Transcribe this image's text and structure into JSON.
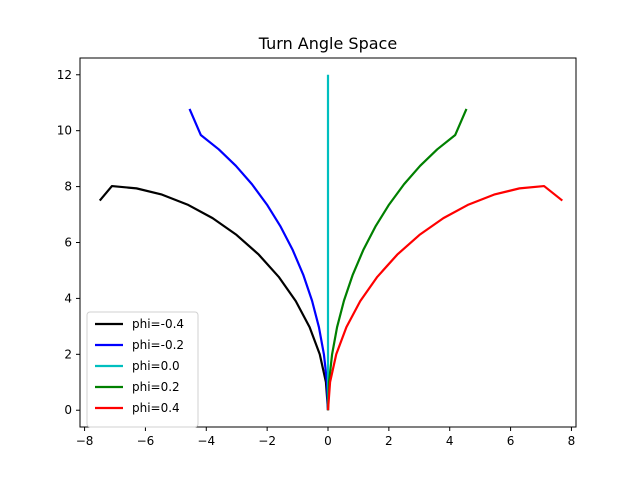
{
  "chart_data": {
    "type": "line",
    "title": "Turn Angle Space",
    "xlabel": "",
    "ylabel": "",
    "xlim": [
      -8.15,
      8.15
    ],
    "ylim": [
      -0.6,
      12.6
    ],
    "x_ticks": [
      -8,
      -6,
      -4,
      -2,
      0,
      2,
      4,
      6,
      8
    ],
    "x_tick_labels": [
      "−8",
      "−6",
      "−4",
      "−2",
      "0",
      "2",
      "4",
      "6",
      "8"
    ],
    "y_ticks": [
      0,
      2,
      4,
      6,
      8,
      10,
      12
    ],
    "y_tick_labels": [
      "0",
      "2",
      "4",
      "6",
      "8",
      "10",
      "12"
    ],
    "grid": false,
    "legend_position": "lower-left",
    "series": [
      {
        "name": "phi=-0.4",
        "color": "#000000",
        "x": [
          0,
          -0.068,
          -0.271,
          -0.605,
          -1.059,
          -1.621,
          -2.276,
          -3.006,
          -3.793,
          -4.617,
          -5.457,
          -6.292,
          -7.101,
          -7.5
        ],
        "y": [
          0,
          1.006,
          2.004,
          2.973,
          3.903,
          4.773,
          5.568,
          6.272,
          6.873,
          7.356,
          7.713,
          7.936,
          8.019,
          7.5
        ]
      },
      {
        "name": "phi=-0.2",
        "color": "#0000ff",
        "x": [
          0,
          -0.033,
          -0.133,
          -0.297,
          -0.525,
          -0.813,
          -1.159,
          -1.558,
          -2.006,
          -2.498,
          -3.028,
          -3.591,
          -4.181,
          -4.55
        ],
        "y": [
          0,
          0.999,
          1.99,
          2.967,
          3.922,
          4.845,
          5.73,
          6.57,
          7.356,
          8.083,
          8.744,
          9.334,
          9.847,
          10.78
        ]
      },
      {
        "name": "phi=0.0",
        "color": "#00bfbf",
        "x": [
          0,
          0
        ],
        "y": [
          0,
          12
        ]
      },
      {
        "name": "phi=0.2",
        "color": "#008000",
        "x": [
          0,
          0.033,
          0.133,
          0.297,
          0.525,
          0.813,
          1.159,
          1.558,
          2.006,
          2.498,
          3.028,
          3.591,
          4.181,
          4.55
        ],
        "y": [
          0,
          0.999,
          1.99,
          2.967,
          3.922,
          4.845,
          5.73,
          6.57,
          7.356,
          8.083,
          8.744,
          9.334,
          9.847,
          10.78
        ]
      },
      {
        "name": "phi=0.4",
        "color": "#ff0000",
        "x": [
          0,
          0.068,
          0.271,
          0.605,
          1.059,
          1.621,
          2.276,
          3.006,
          3.793,
          4.617,
          5.457,
          6.292,
          7.101,
          7.7
        ],
        "y": [
          0,
          1.006,
          2.004,
          2.973,
          3.903,
          4.773,
          5.568,
          6.272,
          6.873,
          7.356,
          7.713,
          7.936,
          8.019,
          7.5
        ]
      }
    ]
  }
}
